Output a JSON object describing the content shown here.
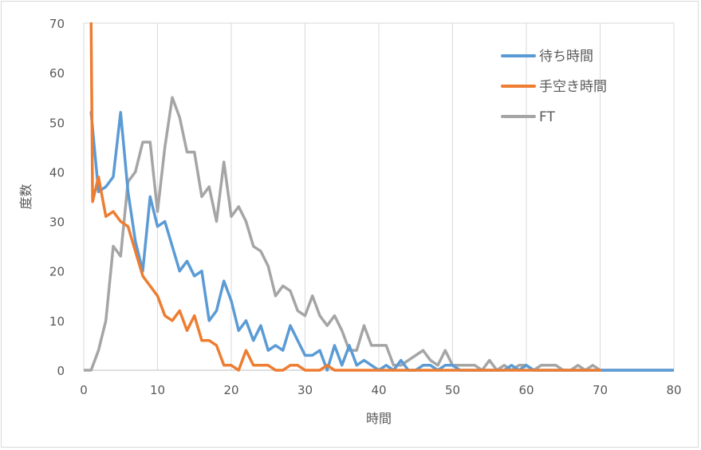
{
  "chart_data": {
    "type": "line",
    "title": "",
    "xlabel": "時間",
    "ylabel": "度数",
    "xlim": [
      0,
      80
    ],
    "ylim": [
      0,
      70
    ],
    "xticks": [
      0,
      10,
      20,
      30,
      40,
      50,
      60,
      70,
      80
    ],
    "yticks": [
      0,
      10,
      20,
      30,
      40,
      50,
      60,
      70
    ],
    "grid": "vertical",
    "legend_position": "top-right",
    "series": [
      {
        "name": "待ち時間",
        "color": "#5b9bd5",
        "x": [
          1,
          2,
          3,
          4,
          5,
          6,
          7,
          8,
          9,
          10,
          11,
          12,
          13,
          14,
          15,
          16,
          17,
          18,
          19,
          20,
          21,
          22,
          23,
          24,
          25,
          26,
          27,
          28,
          29,
          30,
          31,
          32,
          33,
          34,
          35,
          36,
          37,
          38,
          39,
          40,
          41,
          42,
          43,
          44,
          45,
          46,
          47,
          48,
          49,
          50,
          51,
          52,
          53,
          54,
          55,
          56,
          57,
          58,
          59,
          60,
          61,
          62,
          63,
          64,
          65,
          66,
          67,
          68,
          69,
          70,
          71,
          72,
          73,
          74,
          75,
          76,
          77,
          78,
          79,
          80
        ],
        "values": [
          52,
          36,
          37,
          39,
          52,
          36,
          26,
          20,
          35,
          29,
          30,
          25,
          20,
          22,
          19,
          20,
          10,
          12,
          18,
          14,
          8,
          10,
          6,
          9,
          4,
          5,
          4,
          9,
          6,
          3,
          3,
          4,
          0,
          5,
          1,
          5,
          1,
          2,
          1,
          0,
          1,
          0,
          2,
          0,
          0,
          1,
          1,
          0,
          1,
          1,
          0,
          0,
          0,
          0,
          0,
          0,
          0,
          1,
          0,
          1,
          0,
          0,
          0,
          0,
          0,
          0,
          0,
          0,
          0,
          0,
          0,
          0,
          0,
          0,
          0,
          0,
          0,
          0,
          0,
          0
        ]
      },
      {
        "name": "手空き時間",
        "color": "#ed7d31",
        "x": [
          1,
          1.2,
          2,
          3,
          4,
          5,
          6,
          7,
          8,
          9,
          10,
          11,
          12,
          13,
          14,
          15,
          16,
          17,
          18,
          19,
          20,
          21,
          22,
          23,
          24,
          25,
          26,
          27,
          28,
          29,
          30,
          31,
          32,
          33,
          34,
          35,
          36,
          37,
          38,
          39,
          40,
          41,
          42,
          43,
          44,
          45,
          46,
          47,
          48,
          49,
          50,
          51,
          52,
          53,
          54,
          55,
          56,
          57,
          58,
          59,
          60,
          61,
          62,
          63,
          64,
          65,
          66,
          67,
          68,
          69,
          70
        ],
        "values": [
          70,
          34,
          39,
          31,
          32,
          30,
          29,
          24,
          19,
          17,
          15,
          11,
          10,
          12,
          8,
          11,
          6,
          6,
          5,
          1,
          1,
          0,
          4,
          1,
          1,
          1,
          0,
          0,
          1,
          1,
          0,
          0,
          0,
          1,
          0,
          0,
          0,
          0,
          0,
          0,
          0,
          0,
          0,
          0,
          0,
          0,
          0,
          0,
          0,
          0,
          0,
          0,
          0,
          0,
          0,
          0,
          0,
          0,
          0,
          0,
          0,
          0,
          0,
          0,
          0,
          0,
          0,
          0,
          0,
          0,
          0
        ]
      },
      {
        "name": "FT",
        "color": "#a5a5a5",
        "x": [
          0,
          1,
          2,
          3,
          4,
          5,
          6,
          7,
          8,
          9,
          10,
          11,
          12,
          13,
          14,
          15,
          16,
          17,
          18,
          19,
          20,
          21,
          22,
          23,
          24,
          25,
          26,
          27,
          28,
          29,
          30,
          31,
          32,
          33,
          34,
          35,
          36,
          37,
          38,
          39,
          40,
          41,
          42,
          43,
          44,
          45,
          46,
          47,
          48,
          49,
          50,
          51,
          52,
          53,
          54,
          55,
          56,
          57,
          58,
          59,
          60,
          61,
          62,
          63,
          64,
          65,
          66,
          67,
          68,
          69,
          70,
          71,
          72,
          73,
          74,
          75,
          76,
          77,
          78,
          79,
          80
        ],
        "values": [
          0,
          0,
          4,
          10,
          25,
          23,
          38,
          40,
          46,
          46,
          32,
          45,
          55,
          51,
          44,
          44,
          35,
          37,
          30,
          42,
          31,
          33,
          30,
          25,
          24,
          21,
          15,
          17,
          16,
          12,
          11,
          15,
          11,
          9,
          11,
          8,
          4,
          4,
          9,
          5,
          5,
          5,
          1,
          1,
          2,
          3,
          4,
          2,
          1,
          4,
          1,
          1,
          1,
          1,
          0,
          2,
          0,
          1,
          0,
          1,
          1,
          0,
          1,
          1,
          1,
          0,
          0,
          1,
          0,
          1,
          0,
          0,
          0,
          0,
          0,
          0,
          0,
          0,
          0,
          0,
          0
        ]
      }
    ]
  }
}
